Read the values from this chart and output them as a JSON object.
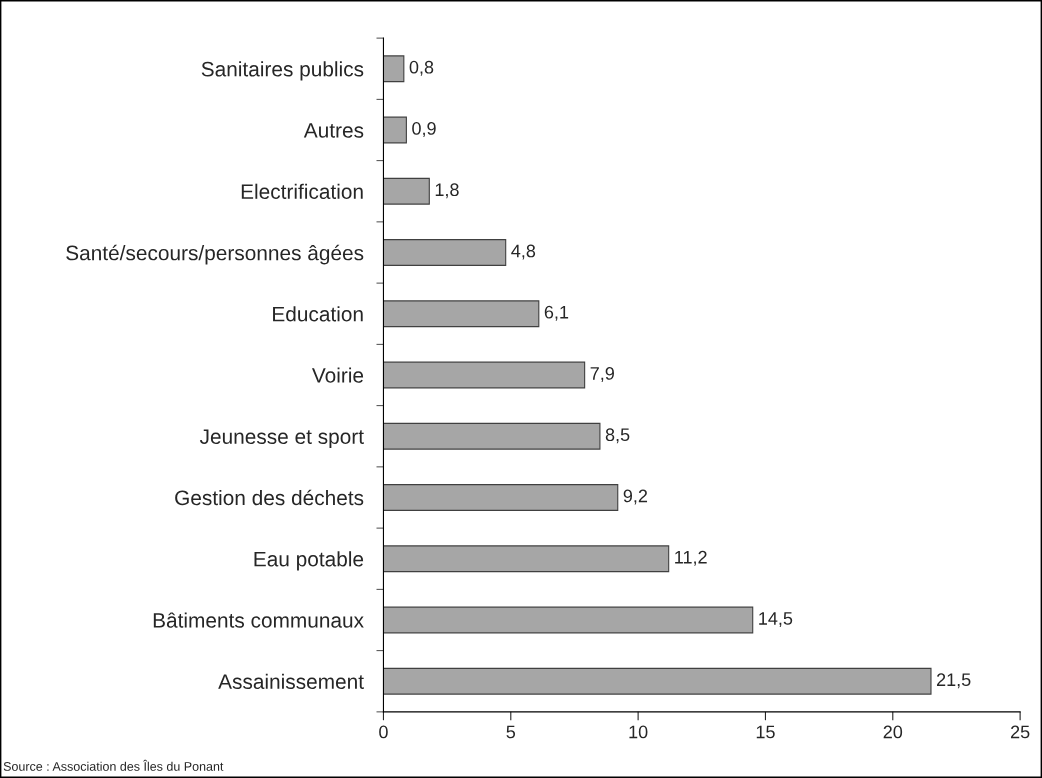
{
  "chart_data": {
    "type": "bar",
    "orientation": "horizontal",
    "categories": [
      "Sanitaires publics",
      "Autres",
      "Electrification",
      "Santé/secours/personnes âgées",
      "Education",
      "Voirie",
      "Jeunesse et sport",
      "Gestion des déchets",
      "Eau potable",
      "Bâtiments communaux",
      "Assainissement"
    ],
    "values": [
      0.8,
      0.9,
      1.8,
      4.8,
      6.1,
      7.9,
      8.5,
      9.2,
      11.2,
      14.5,
      21.5
    ],
    "value_labels": [
      "0,8",
      "0,9",
      "1,8",
      "4,8",
      "6,1",
      "7,9",
      "8,5",
      "9,2",
      "11,2",
      "14,5",
      "21,5"
    ],
    "color": "#a6a6a6",
    "xlim": [
      0,
      25
    ],
    "xticks": [
      0,
      5,
      10,
      15,
      20,
      25
    ],
    "grid": false,
    "legend": false,
    "annotations": [
      "Source : Association des Îles du Ponant"
    ]
  }
}
